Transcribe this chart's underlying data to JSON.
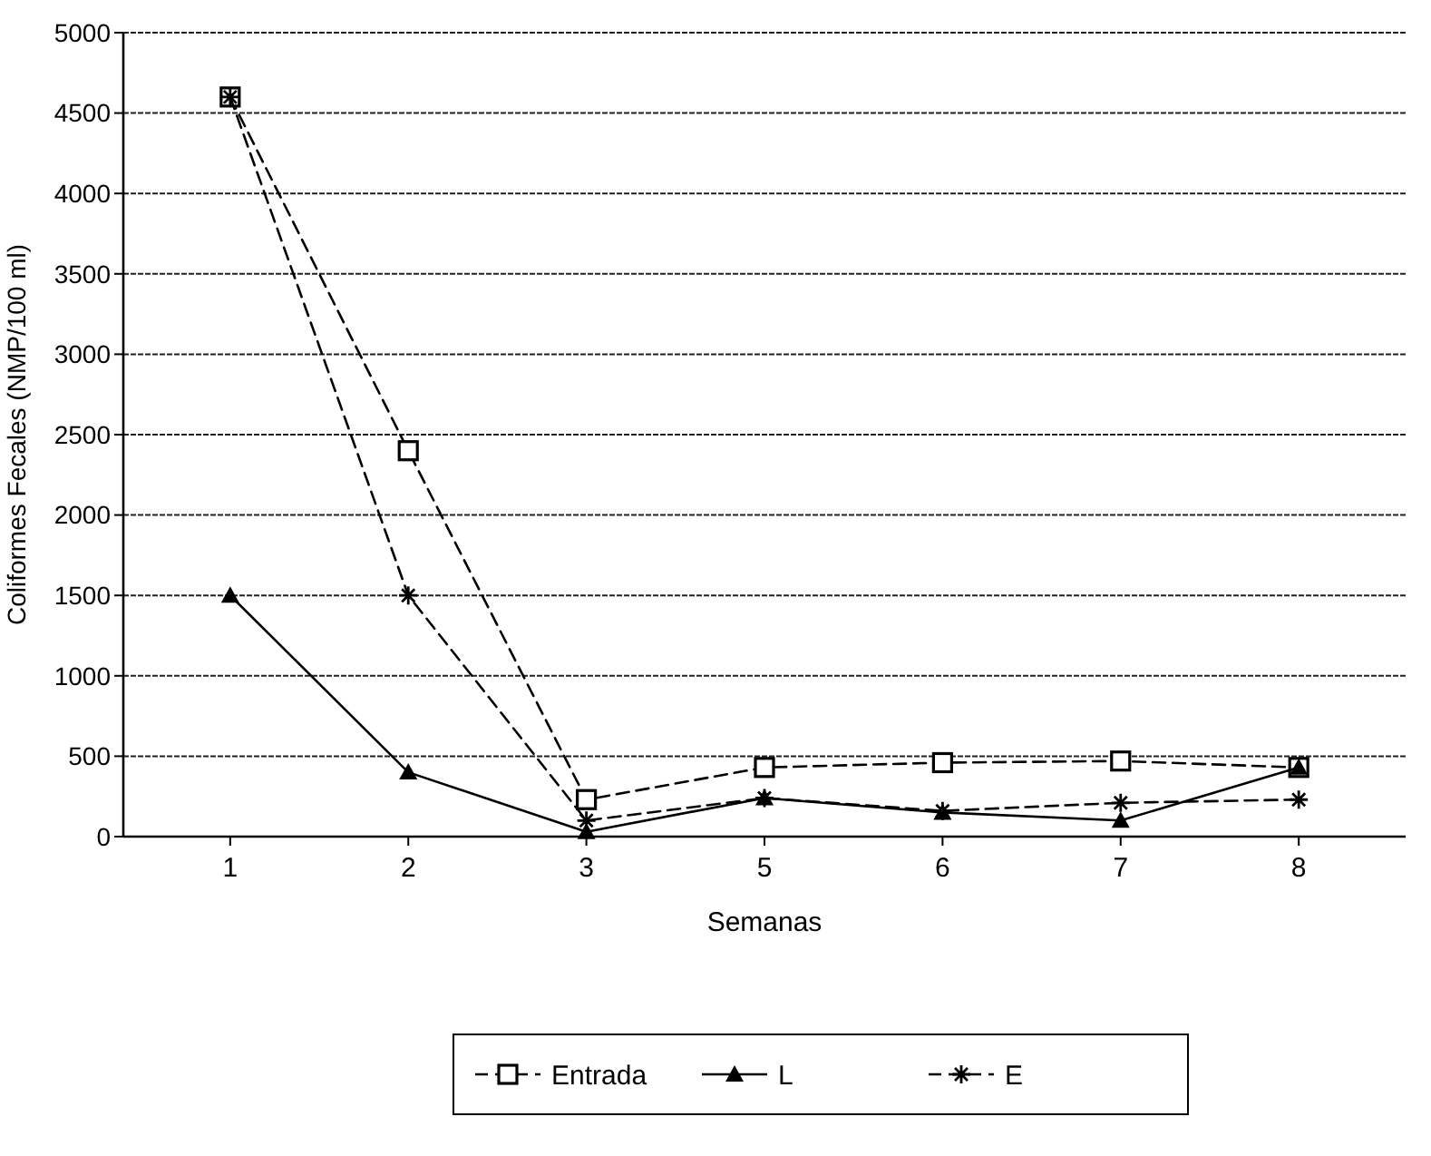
{
  "chart_data": {
    "type": "line",
    "xlabel": "Semanas",
    "ylabel": "Coliformes Fecales (NMP/100 ml)",
    "categories": [
      "1",
      "2",
      "3",
      "5",
      "6",
      "7",
      "8"
    ],
    "series": [
      {
        "name": "Entrada",
        "color": "#000000",
        "marker": "square",
        "line_style": "dashed",
        "values": [
          4600,
          2400,
          230,
          430,
          460,
          470,
          430
        ]
      },
      {
        "name": "L",
        "color": "#000000",
        "marker": "triangle",
        "line_style": "solid",
        "values": [
          1500,
          400,
          30,
          240,
          150,
          100,
          430
        ]
      },
      {
        "name": "E",
        "color": "#000000",
        "marker": "cross",
        "line_style": "dashed",
        "values": [
          4600,
          1500,
          100,
          240,
          160,
          210,
          230
        ]
      }
    ],
    "ylim": [
      0,
      5000
    ],
    "yticks": [
      0,
      500,
      1000,
      1500,
      2000,
      2500,
      3000,
      3500,
      4000,
      4500,
      5000
    ],
    "grid": "y",
    "legend": "bottom"
  }
}
